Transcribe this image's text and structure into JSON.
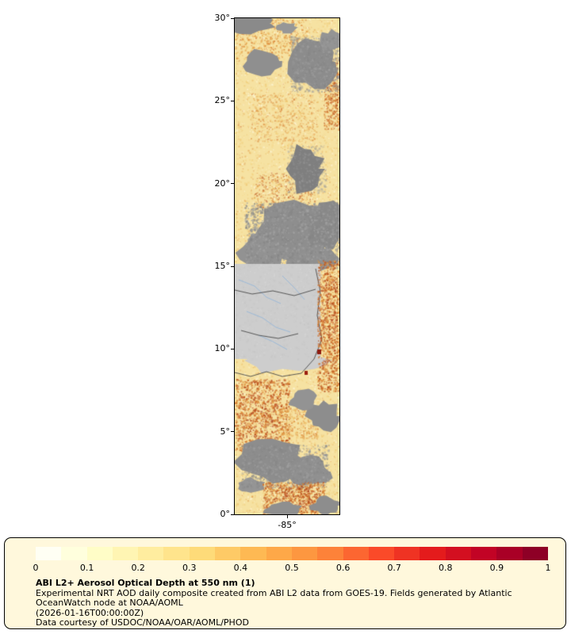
{
  "figure": {
    "lat_ticks": [
      {
        "label": "30°",
        "lat": 30
      },
      {
        "label": "25°",
        "lat": 25
      },
      {
        "label": "20°",
        "lat": 20
      },
      {
        "label": "15°",
        "lat": 15
      },
      {
        "label": "10°",
        "lat": 10
      },
      {
        "label": "5°",
        "lat": 5
      },
      {
        "label": "0°",
        "lat": 0
      }
    ],
    "lon_ticks": [
      {
        "label": "-85°",
        "pos": 0.5
      }
    ]
  },
  "legend": {
    "ticks": [
      "0",
      "0.1",
      "0.2",
      "0.3",
      "0.4",
      "0.5",
      "0.6",
      "0.7",
      "0.8",
      "0.9",
      "1"
    ],
    "colormap_stops": [
      "#ffffff",
      "#ffffcc",
      "#ffeda0",
      "#fed976",
      "#feb24c",
      "#fd8d3c",
      "#fc4e2a",
      "#e31a1c",
      "#bd0026",
      "#800026"
    ],
    "title": "ABI L2+ Aerosol Optical Depth at 550 nm (1)",
    "description": "Experimental NRT AOD daily composite created from ABI L2 data from GOES-19. Fields generated by Atlantic OceanWatch node at NOAA/AOML",
    "timestamp": "(2026-01-16T00:00:00Z)",
    "courtesy": "Data courtesy of USDOC/NOAA/OAR/AOML/PHOD"
  },
  "map_colors": {
    "ocean_base": "#f6e2a2",
    "cloud_gray": "#8e8e8e",
    "land_gray": "#cdcdcd",
    "river_blue": "#8fb4d9",
    "border_dark": "#4a4a4a"
  }
}
